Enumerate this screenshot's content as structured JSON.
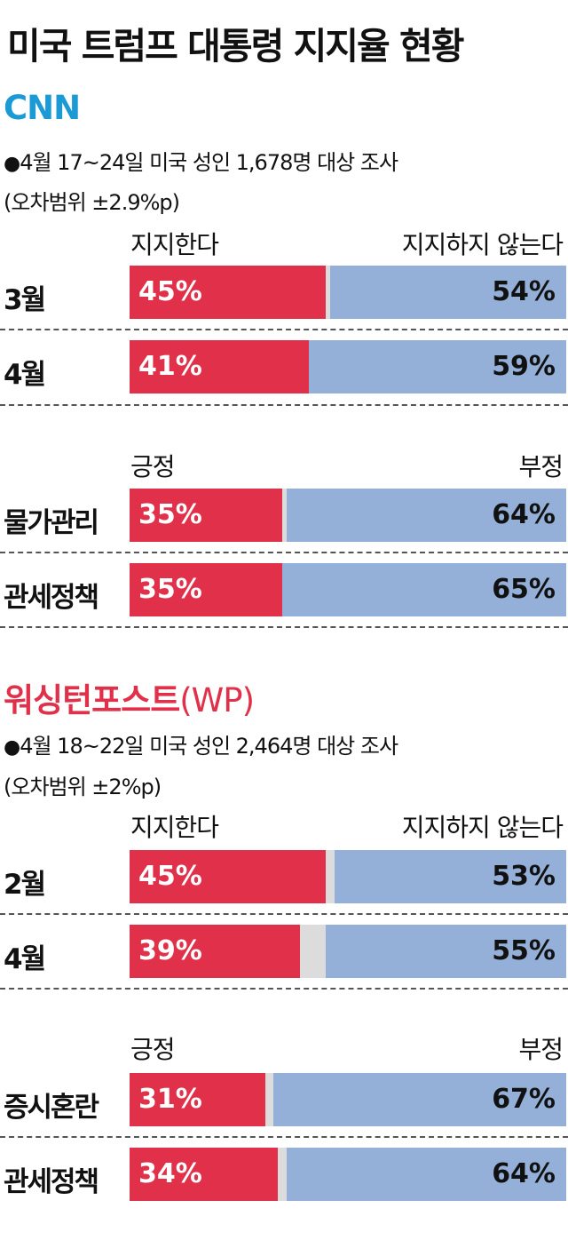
{
  "title": "미국 트럼프 대통령 지지율 현황",
  "colors": {
    "positive": "#e0304a",
    "negative": "#94b0d8",
    "undecided": "#dcdcdc",
    "cnn": "#1b9ad6",
    "wp": "#e0304a"
  },
  "sections": [
    {
      "source": "CNN",
      "source_suffix": "",
      "note_bullet": "●",
      "note_line1": "4월 17~24일 미국 성인 1,678명 대상 조사",
      "note_line2": "(오차범위 ±2.9%p)",
      "groups": [
        {
          "pos_label": "지지한다",
          "neg_label": "지지하지 않는다",
          "rows": [
            {
              "label": "3월",
              "pos": 45,
              "neg": 54,
              "pos_text": "45%",
              "neg_text": "54%"
            },
            {
              "label": "4월",
              "pos": 41,
              "neg": 59,
              "pos_text": "41%",
              "neg_text": "59%"
            }
          ]
        },
        {
          "pos_label": "긍정",
          "neg_label": "부정",
          "rows": [
            {
              "label": "물가관리",
              "pos": 35,
              "neg": 64,
              "pos_text": "35%",
              "neg_text": "64%"
            },
            {
              "label": "관세정책",
              "pos": 35,
              "neg": 65,
              "pos_text": "35%",
              "neg_text": "65%"
            }
          ]
        }
      ]
    },
    {
      "source": "워싱턴포스트",
      "source_suffix": "(WP)",
      "note_bullet": "●",
      "note_line1": "4월 18~22일 미국 성인 2,464명 대상 조사",
      "note_line2": "(오차범위 ±2%p)",
      "groups": [
        {
          "pos_label": "지지한다",
          "neg_label": "지지하지 않는다",
          "rows": [
            {
              "label": "2월",
              "pos": 45,
              "neg": 53,
              "pos_text": "45%",
              "neg_text": "53%"
            },
            {
              "label": "4월",
              "pos": 39,
              "neg": 55,
              "pos_text": "39%",
              "neg_text": "55%"
            }
          ]
        },
        {
          "pos_label": "긍정",
          "neg_label": "부정",
          "rows": [
            {
              "label": "증시혼란",
              "pos": 31,
              "neg": 67,
              "pos_text": "31%",
              "neg_text": "67%"
            },
            {
              "label": "관세정책",
              "pos": 34,
              "neg": 64,
              "pos_text": "34%",
              "neg_text": "64%"
            }
          ]
        }
      ]
    }
  ],
  "chart_data": [
    {
      "type": "bar",
      "stacked": true,
      "categories": [
        "3월",
        "4월"
      ],
      "series": [
        {
          "name": "지지한다",
          "values": [
            45,
            41
          ]
        },
        {
          "name": "지지하지 않는다",
          "values": [
            54,
            59
          ]
        }
      ]
    },
    {
      "type": "bar",
      "stacked": true,
      "categories": [
        "물가관리",
        "관세정책"
      ],
      "series": [
        {
          "name": "긍정",
          "values": [
            35,
            35
          ]
        },
        {
          "name": "부정",
          "values": [
            64,
            65
          ]
        }
      ]
    },
    {
      "type": "bar",
      "stacked": true,
      "categories": [
        "2월",
        "4월"
      ],
      "series": [
        {
          "name": "지지한다",
          "values": [
            45,
            39
          ]
        },
        {
          "name": "지지하지 않는다",
          "values": [
            53,
            55
          ]
        }
      ]
    },
    {
      "type": "bar",
      "stacked": true,
      "categories": [
        "증시혼란",
        "관세정책"
      ],
      "series": [
        {
          "name": "긍정",
          "values": [
            31,
            34
          ]
        },
        {
          "name": "부정",
          "values": [
            67,
            64
          ]
        }
      ]
    }
  ]
}
